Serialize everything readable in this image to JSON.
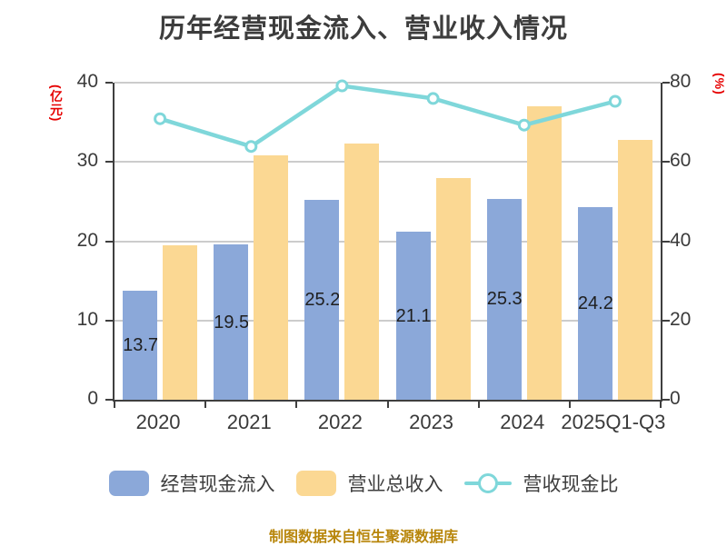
{
  "title": "历年经营现金流入、营业收入情况",
  "left_axis": {
    "unit": "(亿元)",
    "ticks": [
      0,
      10,
      20,
      30,
      40
    ]
  },
  "right_axis": {
    "unit": "(%)",
    "ticks": [
      0,
      20,
      40,
      60,
      80
    ]
  },
  "legend": [
    {
      "label": "经营现金流入",
      "type": "bar",
      "color": "#8BA8D9"
    },
    {
      "label": "营业总收入",
      "type": "bar",
      "color": "#FBD893"
    },
    {
      "label": "营收现金比",
      "type": "line",
      "color": "#7FD7DA"
    }
  ],
  "source": "制图数据来自恒生聚源数据库",
  "colors": {
    "cash_bar": "#8BA8D9",
    "revenue_bar": "#FBD893",
    "ratio_line": "#7FD7DA",
    "axis_unit_red": "#E60000",
    "grid": "#CCCCCC",
    "axis": "#3F3F3F",
    "text": "#3A3A3A",
    "source_text": "#B8860B"
  },
  "chart_data": {
    "type": "bar+line combo",
    "title": "历年经营现金流入、营业收入情况",
    "categories": [
      "2020",
      "2021",
      "2022",
      "2023",
      "2024",
      "2025Q1-Q3"
    ],
    "series": [
      {
        "name": "经营现金流入",
        "type": "bar",
        "axis": "left",
        "unit": "亿元",
        "color": "#8BA8D9",
        "values": [
          13.77,
          19.56,
          25.23,
          21.19,
          25.36,
          24.29
        ],
        "data_labels": true
      },
      {
        "name": "营业总收入",
        "type": "bar",
        "axis": "left",
        "unit": "亿元",
        "color": "#FBD893",
        "values": [
          19.5,
          30.8,
          32.3,
          28.0,
          37.0,
          32.8
        ],
        "data_labels": false
      },
      {
        "name": "营收现金比",
        "type": "line",
        "axis": "right",
        "unit": "%",
        "color": "#7FD7DA",
        "marker": "circle-white-fill",
        "values": [
          70.9,
          63.9,
          79.2,
          76.0,
          69.3,
          75.3
        ],
        "data_labels": false
      }
    ],
    "ylabel_left": "(亿元)",
    "ylabel_right": "(%)",
    "left_ylim": [
      0,
      40
    ],
    "right_ylim": [
      0,
      80
    ],
    "grid": true,
    "legend_position": "bottom"
  }
}
